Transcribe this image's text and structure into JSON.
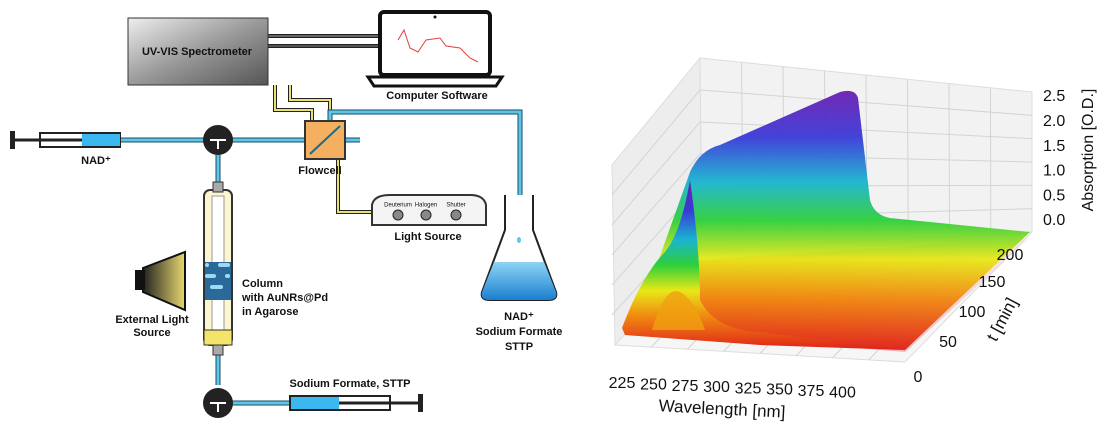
{
  "setup": {
    "spectrometer": "UV-VIS Spectrometer",
    "computer": "Computer Software",
    "syringe_left": "NAD⁺",
    "flowcell": "Flowcell",
    "light_source": {
      "title": "Light Source",
      "knobs": [
        "Deuterium",
        "Halogen",
        "Shutter"
      ]
    },
    "external_light": [
      "External Light",
      "Source"
    ],
    "column": [
      "Column",
      "with AuNRs@Pd",
      "in Agarose"
    ],
    "flask": [
      "NAD⁺",
      "Sodium Formate",
      "STTP"
    ],
    "syringe_bottom": "Sodium Formate, STTP"
  },
  "plot": {
    "x_label": "Wavelength [nm]",
    "y_label": "t [min]",
    "z_label": "Absorption [O.D.]",
    "x_ticks": [
      225,
      250,
      275,
      300,
      325,
      350,
      375,
      400
    ],
    "y_ticks": [
      0,
      50,
      100,
      150,
      200
    ],
    "z_ticks": [
      "0.0",
      "0.5",
      "1.0",
      "1.5",
      "2.0",
      "2.5"
    ]
  }
}
